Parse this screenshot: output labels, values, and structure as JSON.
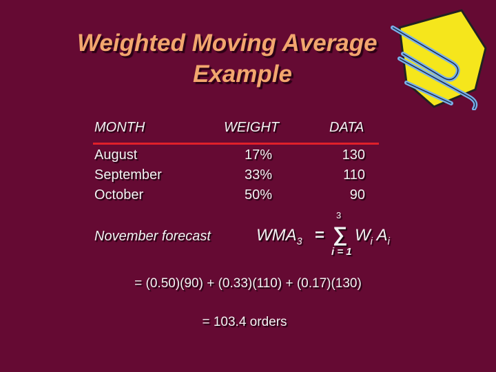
{
  "title": {
    "line1": "Weighted Moving Average",
    "line2": "Example"
  },
  "table": {
    "header": [
      "MONTH",
      "WEIGHT",
      "DATA"
    ],
    "rows": [
      [
        "August",
        "17%",
        "130"
      ],
      [
        "September",
        "33%",
        "110"
      ],
      [
        "October",
        "50%",
        "90"
      ]
    ]
  },
  "formula": {
    "label": "November forecast",
    "lhs": "WMA",
    "lhs_sub": "3",
    "equals": "=",
    "sum": "∑",
    "upper": "3",
    "lower": "i = 1",
    "w": "W",
    "w_sub": "i",
    "a": "A",
    "a_sub": "i"
  },
  "calculation": {
    "line1": "= (0.50)(90) + (0.33)(110) + (0.17)(130)",
    "line2": "= 103.4 orders"
  }
}
